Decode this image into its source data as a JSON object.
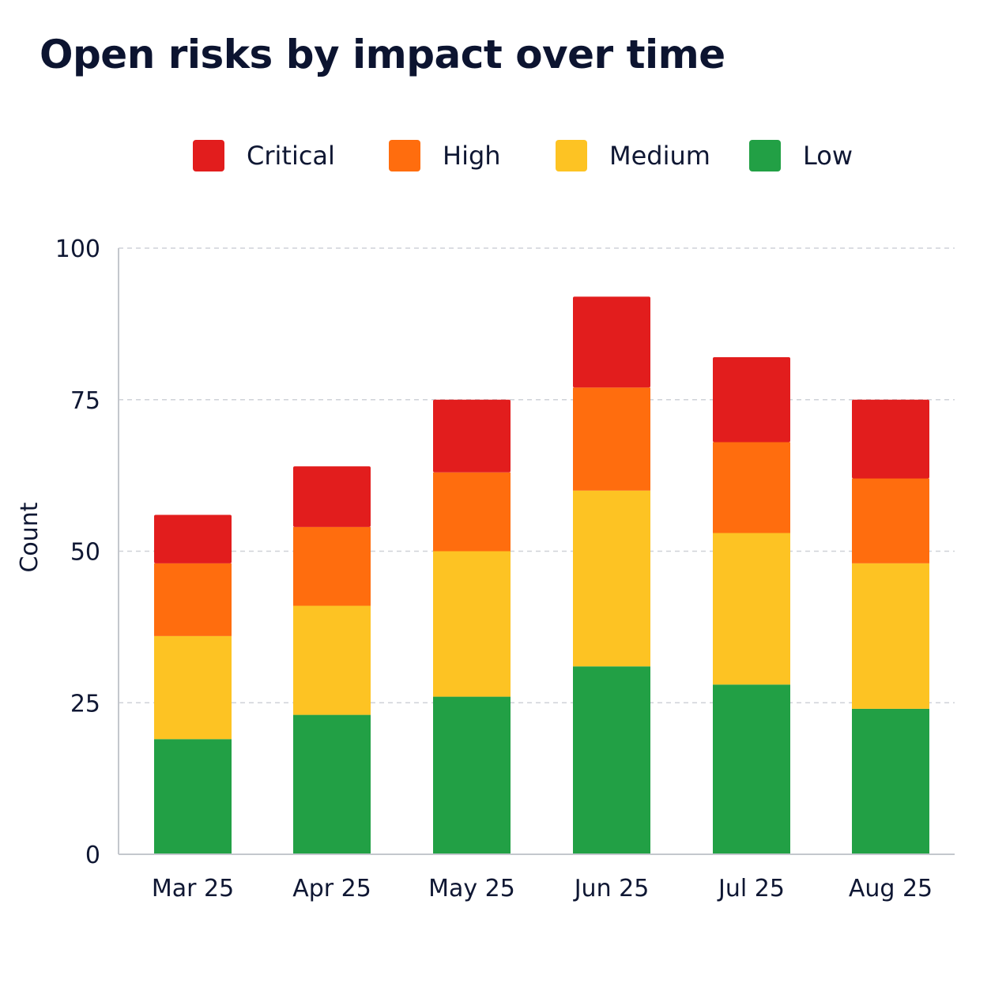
{
  "chart_data": {
    "type": "bar",
    "stacked": true,
    "title": "Open risks by impact over time",
    "xlabel": "",
    "ylabel": "Count",
    "ylim": [
      0,
      100
    ],
    "yticks": [
      0,
      25,
      50,
      75,
      100
    ],
    "grid": true,
    "legend_position": "top",
    "categories": [
      "Mar 25",
      "Apr 25",
      "May 25",
      "Jun 25",
      "Jul 25",
      "Aug 25"
    ],
    "series": [
      {
        "name": "Low",
        "color": "#22a045",
        "values": [
          19,
          23,
          26,
          31,
          28,
          24
        ]
      },
      {
        "name": "Medium",
        "color": "#fdc323",
        "values": [
          17,
          18,
          24,
          29,
          25,
          24
        ]
      },
      {
        "name": "High",
        "color": "#ff6d0e",
        "values": [
          12,
          13,
          13,
          17,
          15,
          14
        ]
      },
      {
        "name": "Critical",
        "color": "#e21d1d",
        "values": [
          8,
          10,
          12,
          15,
          14,
          13
        ]
      }
    ]
  }
}
